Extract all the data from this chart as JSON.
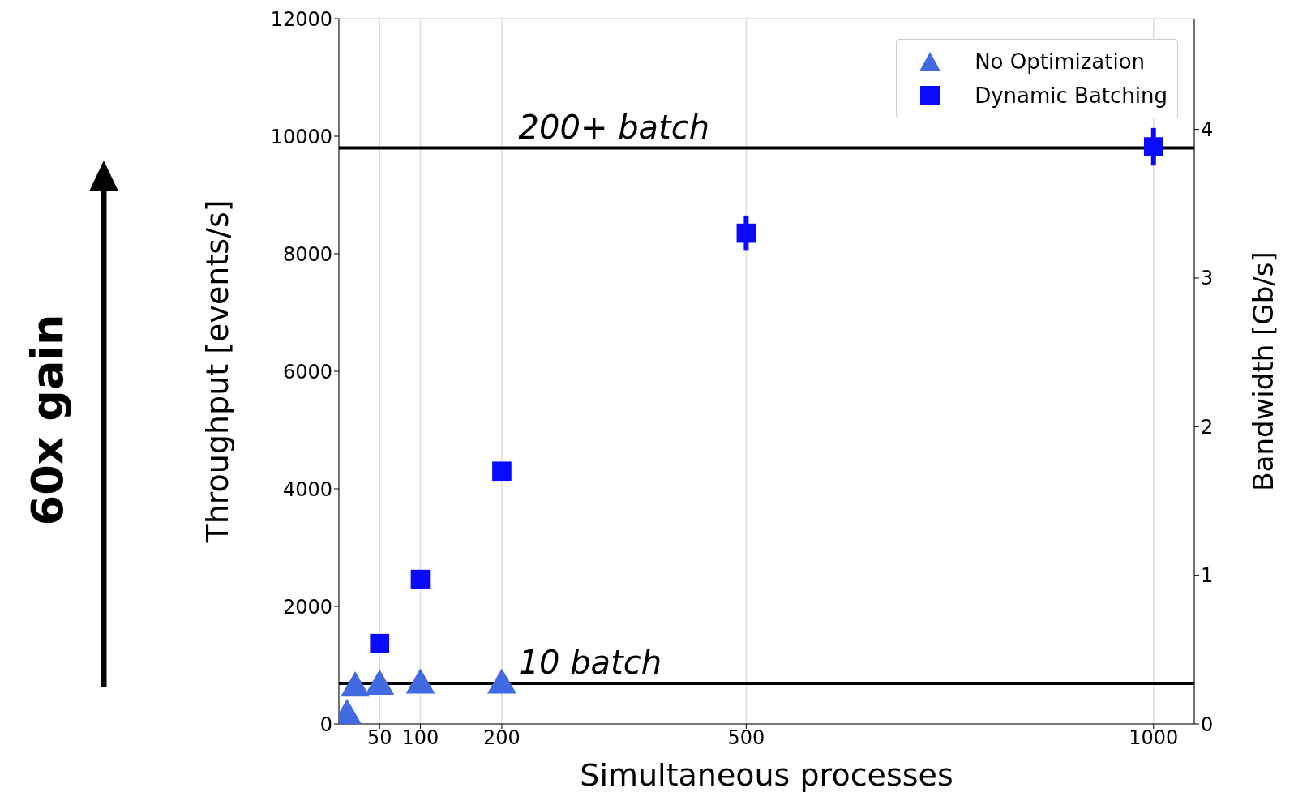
{
  "chart_data": {
    "type": "scatter",
    "xlabel": "Simultaneous processes",
    "ylabel": "Throughput [events/s]",
    "y2label": "Bandwidth [Gb/s]",
    "xlim": [
      0,
      1050
    ],
    "xticks": [
      50,
      100,
      200,
      500,
      1000
    ],
    "ylim": [
      0,
      12000
    ],
    "yticks": [
      0,
      2000,
      4000,
      6000,
      8000,
      10000,
      12000
    ],
    "y2lim": [
      0,
      4.745
    ],
    "y2ticks": [
      0,
      1,
      2,
      3,
      4
    ],
    "grid": true,
    "legend": "top right",
    "series": [
      {
        "name": "No Optimization",
        "color": "#4169e1",
        "marker": "triangle",
        "x": [
          10,
          20,
          50,
          100,
          200
        ],
        "values": [
          140,
          610,
          640,
          660,
          660
        ]
      },
      {
        "name": "Dynamic Batching",
        "color": "#0a0aff",
        "marker": "square",
        "x": [
          50,
          100,
          200,
          500,
          1000
        ],
        "values": [
          1370,
          2460,
          4300,
          8350,
          9820
        ],
        "errors": [
          null,
          null,
          null,
          300,
          320
        ]
      }
    ],
    "ref_lines": [
      {
        "axis": "y",
        "value": 9800,
        "label": "200+ batch",
        "color": "#000000"
      },
      {
        "axis": "y",
        "value": 690,
        "label": "10 batch",
        "color": "#000000"
      }
    ],
    "annotations": [
      "60x gain"
    ]
  }
}
